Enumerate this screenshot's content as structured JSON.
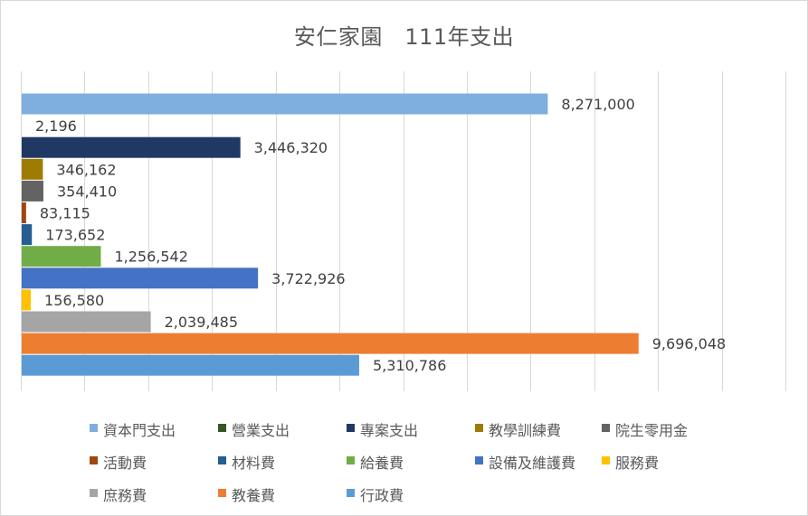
{
  "chart_data": {
    "type": "bar",
    "orientation": "horizontal",
    "title": "安仁家園　111年支出",
    "xlabel": "",
    "ylabel": "",
    "xlim": [
      0,
      12000000
    ],
    "gridlines": "vertical",
    "show_tick_labels": false,
    "legend_position": "bottom",
    "series": [
      {
        "name": "資本門支出",
        "value": 8271000,
        "label": "8,271,000",
        "color": "#7eafdf"
      },
      {
        "name": "營業支出",
        "value": 2196,
        "label": "2,196",
        "color": "#375623"
      },
      {
        "name": "專案支出",
        "value": 3446320,
        "label": "3,446,320",
        "color": "#203864"
      },
      {
        "name": "教學訓練費",
        "value": 346162,
        "label": "346,162",
        "color": "#9e7b02"
      },
      {
        "name": "院生零用金",
        "value": 354410,
        "label": "354,410",
        "color": "#636363"
      },
      {
        "name": "活動費",
        "value": 83115,
        "label": "83,115",
        "color": "#9e480e"
      },
      {
        "name": "材料費",
        "value": 173652,
        "label": "173,652",
        "color": "#255e91"
      },
      {
        "name": "給養費",
        "value": 1256542,
        "label": "1,256,542",
        "color": "#70ad47"
      },
      {
        "name": "設備及維護費",
        "value": 3722926,
        "label": "3,722,926",
        "color": "#4472c4"
      },
      {
        "name": "服務費",
        "value": 156580,
        "label": "156,580",
        "color": "#ffc000"
      },
      {
        "name": "庶務費",
        "value": 2039485,
        "label": "2,039,485",
        "color": "#a5a5a5"
      },
      {
        "name": "教養費",
        "value": 9696048,
        "label": "9,696,048",
        "color": "#ed7d31"
      },
      {
        "name": "行政費",
        "value": 5310786,
        "label": "5,310,786",
        "color": "#5b9bd5"
      }
    ]
  }
}
